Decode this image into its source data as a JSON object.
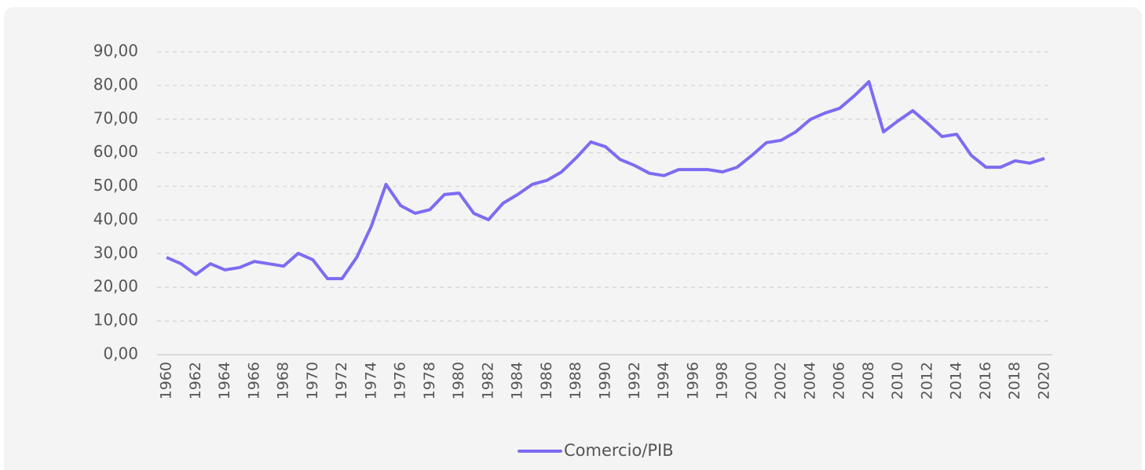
{
  "chart_data": {
    "type": "line",
    "x": [
      1960,
      1961,
      1962,
      1963,
      1964,
      1965,
      1966,
      1967,
      1968,
      1969,
      1970,
      1971,
      1972,
      1973,
      1974,
      1975,
      1976,
      1977,
      1978,
      1979,
      1980,
      1981,
      1982,
      1983,
      1984,
      1985,
      1986,
      1987,
      1988,
      1989,
      1990,
      1991,
      1992,
      1993,
      1994,
      1995,
      1996,
      1997,
      1998,
      1999,
      2000,
      2001,
      2002,
      2003,
      2004,
      2005,
      2006,
      2007,
      2008,
      2009,
      2010,
      2011,
      2012,
      2013,
      2014,
      2015,
      2016,
      2017,
      2018,
      2019,
      2020
    ],
    "series": [
      {
        "name": "Comercio/PIB",
        "color": "#7c6cf2",
        "values": [
          28.9,
          27.0,
          23.8,
          27.0,
          25.2,
          25.9,
          27.7,
          27.0,
          26.3,
          30.1,
          28.2,
          22.6,
          22.6,
          28.9,
          38.2,
          50.6,
          44.3,
          42.0,
          43.1,
          47.6,
          48.0,
          42.0,
          40.1,
          45.0,
          47.6,
          50.6,
          51.8,
          54.3,
          58.5,
          63.2,
          61.8,
          58.0,
          56.2,
          53.9,
          53.2,
          55.0,
          55.0,
          55.0,
          54.3,
          55.7,
          59.2,
          63.0,
          63.7,
          66.2,
          69.9,
          71.8,
          73.2,
          76.9,
          81.1,
          66.2,
          69.5,
          72.5,
          68.8,
          64.8,
          65.5,
          59.2,
          55.7,
          55.7,
          57.6,
          56.9,
          58.3
        ]
      }
    ],
    "xlim": [
      1960,
      2020
    ],
    "xticks": [
      1960,
      1962,
      1964,
      1966,
      1968,
      1970,
      1972,
      1974,
      1976,
      1978,
      1980,
      1982,
      1984,
      1986,
      1988,
      1990,
      1992,
      1994,
      1996,
      1998,
      2000,
      2002,
      2004,
      2006,
      2008,
      2010,
      2012,
      2014,
      2016,
      2018,
      2020
    ],
    "ylim": [
      0,
      90
    ],
    "yticks": [
      {
        "value": 0,
        "label": "0,00"
      },
      {
        "value": 10,
        "label": "10,00"
      },
      {
        "value": 20,
        "label": "20,00"
      },
      {
        "value": 30,
        "label": "30,00"
      },
      {
        "value": 40,
        "label": "40,00"
      },
      {
        "value": 50,
        "label": "50,00"
      },
      {
        "value": 60,
        "label": "60,00"
      },
      {
        "value": 70,
        "label": "70,00"
      },
      {
        "value": 80,
        "label": "80,00"
      },
      {
        "value": 90,
        "label": "90,00"
      }
    ],
    "grid": true,
    "legend": "bottom"
  }
}
